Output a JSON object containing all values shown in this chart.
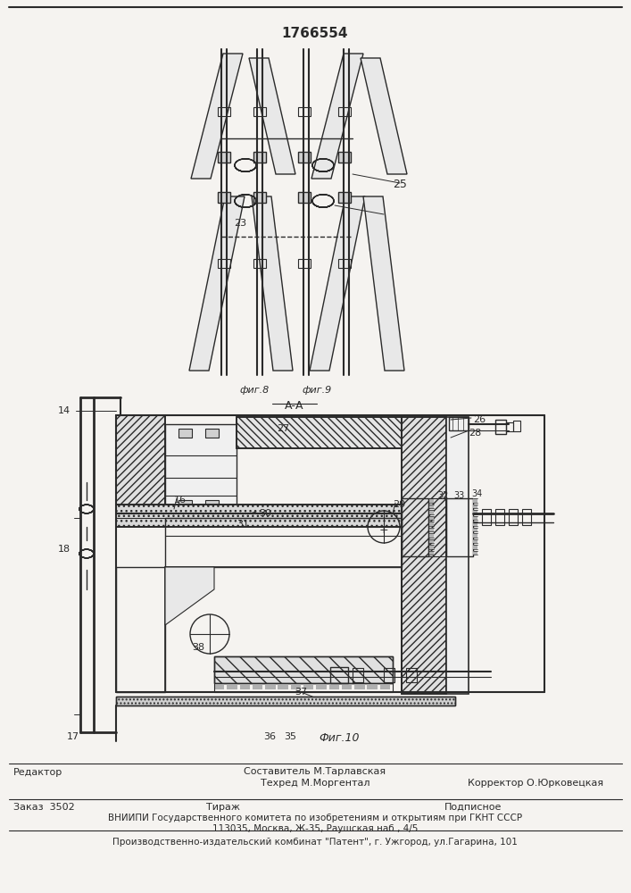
{
  "patent_number": "1766554",
  "bg_color": "#f5f3f0",
  "line_color": "#2a2a2a",
  "footer_block": {
    "editor_label": "Редактор",
    "composer_text": "Составитель М.Тарлавская",
    "techred_text": "Техред М.Моргентал",
    "corrector_label": "Корректор О.Юрковецкая",
    "order_text": "Заказ  3502",
    "tirazh_text": "Тираж",
    "podpisnoe_text": "Подписное",
    "vniiipi_line1": "ВНИИПИ Государственного комитета по изобретениям и открытиям при ГКНТ СССР",
    "vniiipi_line2": "113035, Москва, Ж-35, Раушская наб., 4/5",
    "production_text": "Производственно-издательский комбинат \"Патент\", г. Ужгород, ул.Гагарина, 101"
  },
  "fig8_label": "фиг.8",
  "fig9_label": "фиг.9",
  "fig10_label": "Фиг.10",
  "section_label": "А-А"
}
